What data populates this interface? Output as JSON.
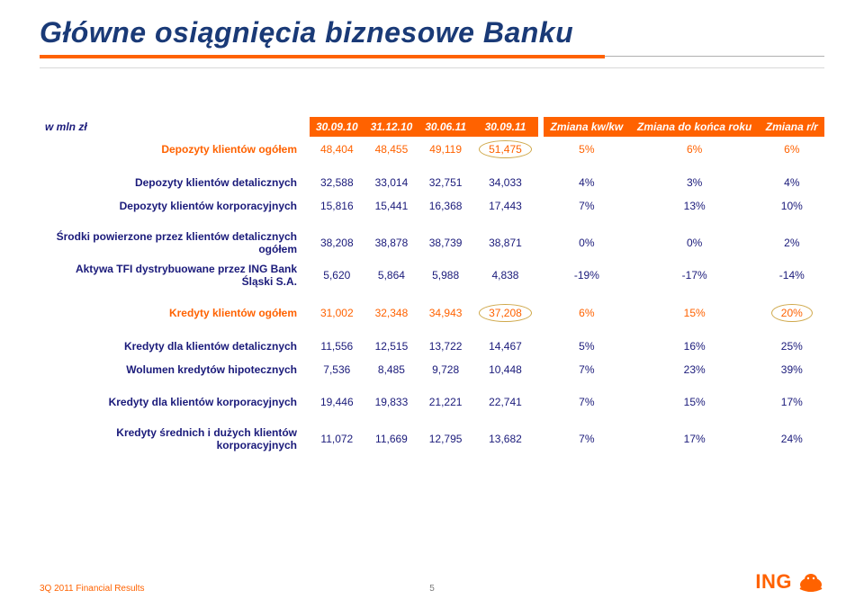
{
  "title": "Główne osiągnięcia biznesowe Banku",
  "table": {
    "row_header_label": "w mln zł",
    "period_cols": [
      "30.09.10",
      "31.12.10",
      "30.06.11",
      "30.09.11"
    ],
    "change_cols": [
      "Zmiana kw/kw",
      "Zmiana do końca roku",
      "Zmiana r/r"
    ],
    "rows": [
      {
        "label": "Depozyty klientów ogółem",
        "orange": true,
        "vals": [
          "48,404",
          "48,455",
          "49,119",
          "51,475"
        ],
        "pcts": [
          "5%",
          "6%",
          "6%"
        ],
        "circle_idx": 3,
        "circle_pct": null
      },
      {
        "label": "Depozyty klientów detalicznych",
        "vals": [
          "32,588",
          "33,014",
          "32,751",
          "34,033"
        ],
        "pcts": [
          "4%",
          "3%",
          "4%"
        ]
      },
      {
        "label": "Depozyty klientów korporacyjnych",
        "vals": [
          "15,816",
          "15,441",
          "16,368",
          "17,443"
        ],
        "pcts": [
          "7%",
          "13%",
          "10%"
        ]
      },
      {
        "label": "Środki powierzone przez klientów detalicznych ogółem",
        "vals": [
          "38,208",
          "38,878",
          "38,739",
          "38,871"
        ],
        "pcts": [
          "0%",
          "0%",
          "2%"
        ]
      },
      {
        "label": "Aktywa TFI dystrybuowane przez ING Bank Śląski S.A.",
        "vals": [
          "5,620",
          "5,864",
          "5,988",
          "4,838"
        ],
        "pcts": [
          "-19%",
          "-17%",
          "-14%"
        ]
      },
      {
        "label": "Kredyty klientów ogółem",
        "orange": true,
        "vals": [
          "31,002",
          "32,348",
          "34,943",
          "37,208"
        ],
        "pcts": [
          "6%",
          "15%",
          "20%"
        ],
        "circle_idx": 3,
        "circle_pct": 2
      },
      {
        "label": "Kredyty dla klientów detalicznych",
        "vals": [
          "11,556",
          "12,515",
          "13,722",
          "14,467"
        ],
        "pcts": [
          "5%",
          "16%",
          "25%"
        ]
      },
      {
        "label": "Wolumen kredytów hipotecznych",
        "vals": [
          "7,536",
          "8,485",
          "9,728",
          "10,448"
        ],
        "pcts": [
          "7%",
          "23%",
          "39%"
        ]
      },
      {
        "label": "Kredyty dla klientów korporacyjnych",
        "vals": [
          "19,446",
          "19,833",
          "21,221",
          "22,741"
        ],
        "pcts": [
          "7%",
          "15%",
          "17%"
        ]
      },
      {
        "label": "Kredyty średnich i dużych klientów korporacyjnych",
        "vals": [
          "11,072",
          "11,669",
          "12,795",
          "13,682"
        ],
        "pcts": [
          "7%",
          "17%",
          "24%"
        ]
      }
    ]
  },
  "footer": {
    "left": "3Q 2011 Financial Results",
    "page": "5",
    "logo": "ING"
  }
}
